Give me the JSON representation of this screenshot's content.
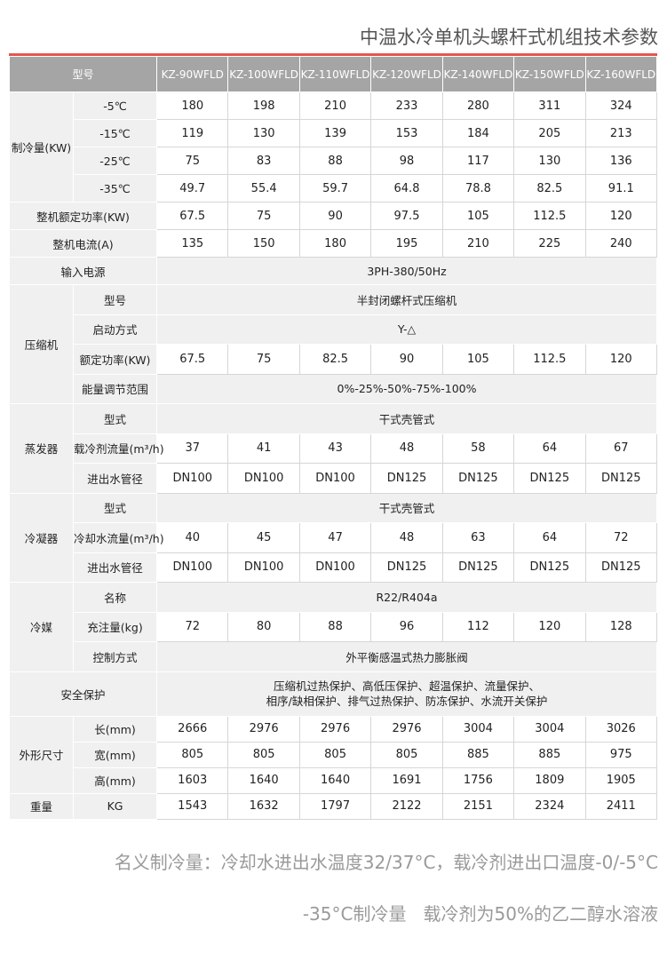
{
  "title": "中温水冷单机头螺杆式机组技术参数",
  "table": {
    "header": {
      "label": "型号",
      "models": [
        "KZ-90WFLD",
        "KZ-100WFLD",
        "KZ-110WFLD",
        "KZ-120WFLD",
        "KZ-140WFLD",
        "KZ-150WFLD",
        "KZ-160WFLD"
      ]
    },
    "groups": [
      {
        "label": "制冷量(KW)",
        "rows": [
          {
            "label": "-5℃",
            "values": [
              180,
              198,
              210,
              233,
              280,
              311,
              324
            ]
          },
          {
            "label": "-15℃",
            "values": [
              119,
              130,
              139,
              153,
              184,
              205,
              213
            ]
          },
          {
            "label": "-25℃",
            "values": [
              75,
              83,
              88,
              98,
              117,
              130,
              136
            ]
          },
          {
            "label": "-35℃",
            "values": [
              49.7,
              55.4,
              59.7,
              64.8,
              78.8,
              82.5,
              91.1
            ]
          }
        ]
      },
      {
        "label": "整机额定功率(KW)",
        "values": [
          67.5,
          75,
          90,
          97.5,
          105,
          112.5,
          120
        ]
      },
      {
        "label": "整机电流(A)",
        "values": [
          135,
          150,
          180,
          195,
          210,
          225,
          240
        ]
      },
      {
        "label": "输入电源",
        "value": "3PH-380/50Hz"
      },
      {
        "label": "压缩机",
        "rows": [
          {
            "label": "型号",
            "value": "半封闭螺杆式压缩机"
          },
          {
            "label": "启动方式",
            "value": "Y-△"
          },
          {
            "label": "额定功率(KW)",
            "values": [
              67.5,
              75,
              82.5,
              90,
              105,
              112.5,
              120
            ]
          },
          {
            "label": "能量调节范围",
            "value": "0%-25%-50%-75%-100%"
          }
        ]
      },
      {
        "label": "蒸发器",
        "rows": [
          {
            "label": "型式",
            "value": "干式壳管式"
          },
          {
            "label": "载冷剂流量(m³/h)",
            "values": [
              37,
              41,
              43,
              48,
              58,
              64,
              67
            ]
          },
          {
            "label": "进出水管径",
            "values": [
              "DN100",
              "DN100",
              "DN100",
              "DN125",
              "DN125",
              "DN125",
              "DN125"
            ]
          }
        ]
      },
      {
        "label": "冷凝器",
        "rows": [
          {
            "label": "型式",
            "value": "干式壳管式"
          },
          {
            "label": "冷却水流量(m³/h)",
            "values": [
              40,
              45,
              47,
              48,
              63,
              64,
              72
            ]
          },
          {
            "label": "进出水管径",
            "values": [
              "DN100",
              "DN100",
              "DN100",
              "DN125",
              "DN125",
              "DN125",
              "DN125"
            ]
          }
        ]
      },
      {
        "label": "冷媒",
        "rows": [
          {
            "label": "名称",
            "value": "R22/R404a"
          },
          {
            "label": "充注量(kg)",
            "values": [
              72,
              80,
              88,
              96,
              112,
              120,
              128
            ]
          },
          {
            "label": "控制方式",
            "value": "外平衡感温式热力膨胀阀"
          }
        ]
      },
      {
        "label": "安全保护",
        "value": [
          "压缩机过热保护、高低压保护、超温保护、流量保护、",
          "相序/缺相保护、排气过热保护、防冻保护、水流开关保护"
        ]
      },
      {
        "label": "外形尺寸",
        "rows": [
          {
            "label": "长(mm)",
            "values": [
              2666,
              2976,
              2976,
              2976,
              3004,
              3004,
              3026
            ]
          },
          {
            "label": "宽(mm)",
            "values": [
              805,
              805,
              805,
              805,
              885,
              885,
              975
            ]
          },
          {
            "label": "高(mm)",
            "values": [
              1603,
              1640,
              1640,
              1691,
              1756,
              1809,
              1905
            ]
          }
        ]
      },
      {
        "label": "重量",
        "rows": [
          {
            "label": "KG",
            "values": [
              1543,
              1632,
              1797,
              2122,
              2151,
              2324,
              2411
            ]
          }
        ]
      }
    ]
  },
  "footnote": [
    "名义制冷量：冷却水进出水温度32/37°C，载冷剂进出口温度-0/-5°C",
    "-35°C制冷量   载冷剂为50%的乙二醇水溶液"
  ]
}
